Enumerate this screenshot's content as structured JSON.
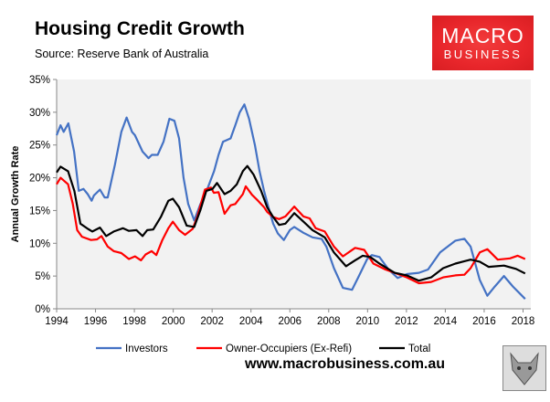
{
  "chart_data": {
    "type": "line",
    "title": "Housing Credit Growth",
    "subtitle": "Source: Reserve Bank of Australia",
    "xlabel": "",
    "ylabel": "Annual Growth Rate",
    "xlim": [
      1994,
      2018.4
    ],
    "ylim": [
      0,
      35
    ],
    "x_ticks": [
      "1994",
      "1996",
      "1998",
      "2000",
      "2002",
      "2004",
      "2006",
      "2008",
      "2010",
      "2012",
      "2014",
      "2016",
      "2018"
    ],
    "y_ticks": [
      "0%",
      "5%",
      "10%",
      "15%",
      "20%",
      "25%",
      "30%",
      "35%"
    ],
    "grid": false,
    "legend": "bottom",
    "series": [
      {
        "name": "Investors",
        "color": "#4472c4",
        "points": [
          [
            1994.0,
            26.5
          ],
          [
            1994.2,
            28
          ],
          [
            1994.36,
            27
          ],
          [
            1994.6,
            28.3
          ],
          [
            1994.9,
            24
          ],
          [
            1995.14,
            18
          ],
          [
            1995.38,
            18.3
          ],
          [
            1995.6,
            17.5
          ],
          [
            1995.8,
            16.5
          ],
          [
            1995.92,
            17.3
          ],
          [
            1996.23,
            18.2
          ],
          [
            1996.47,
            17
          ],
          [
            1996.63,
            17
          ],
          [
            1997.0,
            22
          ],
          [
            1997.33,
            27
          ],
          [
            1997.6,
            29.2
          ],
          [
            1997.88,
            27
          ],
          [
            1998.03,
            26.5
          ],
          [
            1998.42,
            24
          ],
          [
            1998.73,
            23
          ],
          [
            1998.9,
            23.5
          ],
          [
            1999.2,
            23.5
          ],
          [
            1999.5,
            25.5
          ],
          [
            1999.8,
            29
          ],
          [
            2000.06,
            28.7
          ],
          [
            2000.3,
            26
          ],
          [
            2000.53,
            20
          ],
          [
            2000.77,
            16
          ],
          [
            2001.08,
            13.5
          ],
          [
            2001.4,
            16
          ],
          [
            2001.78,
            18.5
          ],
          [
            2002.1,
            21
          ],
          [
            2002.33,
            23.5
          ],
          [
            2002.56,
            25.5
          ],
          [
            2002.95,
            26
          ],
          [
            2003.19,
            28
          ],
          [
            2003.42,
            30
          ],
          [
            2003.66,
            31.2
          ],
          [
            2003.9,
            29
          ],
          [
            2004.2,
            25
          ],
          [
            2004.44,
            21
          ],
          [
            2004.67,
            18
          ],
          [
            2004.9,
            15.5
          ],
          [
            2005.14,
            13
          ],
          [
            2005.38,
            11.5
          ],
          [
            2005.69,
            10.5
          ],
          [
            2006.0,
            12
          ],
          [
            2006.23,
            12.5
          ],
          [
            2006.7,
            11.6
          ],
          [
            2007.17,
            10.9
          ],
          [
            2007.64,
            10.65
          ],
          [
            2007.88,
            9.5
          ],
          [
            2008.27,
            6.2
          ],
          [
            2008.73,
            3.2
          ],
          [
            2009.2,
            2.9
          ],
          [
            2009.52,
            4.8
          ],
          [
            2009.98,
            7.6
          ],
          [
            2010.22,
            8.2
          ],
          [
            2010.61,
            7.9
          ],
          [
            2011.08,
            6
          ],
          [
            2011.55,
            4.7
          ],
          [
            2012.02,
            5.3
          ],
          [
            2012.64,
            5.5
          ],
          [
            2013.11,
            6
          ],
          [
            2013.73,
            8.6
          ],
          [
            2014.52,
            10.4
          ],
          [
            2014.98,
            10.7
          ],
          [
            2015.3,
            9.5
          ],
          [
            2015.77,
            4.4
          ],
          [
            2016.16,
            2
          ],
          [
            2016.55,
            3.4
          ],
          [
            2017.02,
            5
          ],
          [
            2017.48,
            3.4
          ],
          [
            2018.11,
            1.5
          ]
        ]
      },
      {
        "name": "Owner-Occupiers (Ex-Refi)",
        "color": "#ff0000",
        "points": [
          [
            1994.0,
            19
          ],
          [
            1994.2,
            20
          ],
          [
            1994.59,
            19
          ],
          [
            1994.83,
            16
          ],
          [
            1995.06,
            12
          ],
          [
            1995.3,
            11
          ],
          [
            1995.77,
            10.5
          ],
          [
            1996.08,
            10.6
          ],
          [
            1996.31,
            11.1
          ],
          [
            1996.63,
            9.5
          ],
          [
            1996.94,
            8.8
          ],
          [
            1997.33,
            8.5
          ],
          [
            1997.72,
            7.6
          ],
          [
            1998.03,
            8
          ],
          [
            1998.34,
            7.4
          ],
          [
            1998.58,
            8.3
          ],
          [
            1998.89,
            8.8
          ],
          [
            1999.13,
            8.2
          ],
          [
            1999.44,
            10.5
          ],
          [
            1999.75,
            12.3
          ],
          [
            1999.98,
            13.3
          ],
          [
            2000.3,
            12
          ],
          [
            2000.61,
            11.3
          ],
          [
            2001.0,
            12.2
          ],
          [
            2001.23,
            14
          ],
          [
            2001.63,
            18.2
          ],
          [
            2001.94,
            18.5
          ],
          [
            2002.09,
            17.7
          ],
          [
            2002.33,
            17.8
          ],
          [
            2002.64,
            14.5
          ],
          [
            2002.95,
            15.8
          ],
          [
            2003.19,
            16
          ],
          [
            2003.58,
            17.5
          ],
          [
            2003.73,
            18.7
          ],
          [
            2004.05,
            17.4
          ],
          [
            2004.36,
            16.5
          ],
          [
            2004.67,
            15.5
          ],
          [
            2004.83,
            14.8
          ],
          [
            2005.14,
            14
          ],
          [
            2005.45,
            13.7
          ],
          [
            2005.77,
            14.1
          ],
          [
            2006.23,
            15.6
          ],
          [
            2006.7,
            14.1
          ],
          [
            2007.02,
            13.8
          ],
          [
            2007.33,
            12.3
          ],
          [
            2007.8,
            11.8
          ],
          [
            2008.27,
            9.5
          ],
          [
            2008.73,
            8
          ],
          [
            2009.36,
            9.3
          ],
          [
            2009.83,
            9
          ],
          [
            2010.3,
            6.9
          ],
          [
            2010.92,
            6
          ],
          [
            2011.39,
            5.5
          ],
          [
            2012.02,
            4.8
          ],
          [
            2012.64,
            3.9
          ],
          [
            2013.27,
            4.1
          ],
          [
            2013.89,
            4.8
          ],
          [
            2014.52,
            5.1
          ],
          [
            2014.98,
            5.2
          ],
          [
            2015.3,
            6.2
          ],
          [
            2015.77,
            8.6
          ],
          [
            2016.16,
            9.1
          ],
          [
            2016.7,
            7.5
          ],
          [
            2017.33,
            7.7
          ],
          [
            2017.72,
            8.1
          ],
          [
            2018.11,
            7.6
          ]
        ]
      },
      {
        "name": "Total",
        "color": "#000000",
        "points": [
          [
            1994.0,
            20.8
          ],
          [
            1994.2,
            21.7
          ],
          [
            1994.59,
            21
          ],
          [
            1994.91,
            18
          ],
          [
            1995.22,
            13
          ],
          [
            1995.61,
            12.2
          ],
          [
            1995.84,
            11.8
          ],
          [
            1996.23,
            12.4
          ],
          [
            1996.55,
            11.1
          ],
          [
            1996.94,
            11.8
          ],
          [
            1997.41,
            12.3
          ],
          [
            1997.72,
            11.9
          ],
          [
            1998.11,
            12
          ],
          [
            1998.42,
            11.1
          ],
          [
            1998.66,
            12
          ],
          [
            1998.97,
            12.1
          ],
          [
            1999.36,
            14
          ],
          [
            1999.75,
            16.5
          ],
          [
            1999.98,
            16.8
          ],
          [
            2000.3,
            15.5
          ],
          [
            2000.69,
            12.7
          ],
          [
            2001.08,
            12.5
          ],
          [
            2001.39,
            15
          ],
          [
            2001.7,
            18
          ],
          [
            2002.02,
            18.3
          ],
          [
            2002.25,
            19.2
          ],
          [
            2002.64,
            17.5
          ],
          [
            2002.95,
            18
          ],
          [
            2003.27,
            19
          ],
          [
            2003.58,
            21
          ],
          [
            2003.81,
            21.8
          ],
          [
            2004.13,
            20.5
          ],
          [
            2004.52,
            18
          ],
          [
            2004.83,
            15.5
          ],
          [
            2005.14,
            14
          ],
          [
            2005.45,
            12.8
          ],
          [
            2005.77,
            13
          ],
          [
            2006.23,
            14.6
          ],
          [
            2006.7,
            13.3
          ],
          [
            2007.17,
            12
          ],
          [
            2007.8,
            10.9
          ],
          [
            2008.27,
            8.6
          ],
          [
            2008.89,
            6.5
          ],
          [
            2009.36,
            7.4
          ],
          [
            2009.75,
            8.1
          ],
          [
            2010.14,
            7.9
          ],
          [
            2010.61,
            6.9
          ],
          [
            2011.39,
            5.5
          ],
          [
            2012.02,
            5.1
          ],
          [
            2012.64,
            4.3
          ],
          [
            2013.27,
            4.8
          ],
          [
            2013.89,
            6.2
          ],
          [
            2014.52,
            6.9
          ],
          [
            2015.3,
            7.5
          ],
          [
            2015.77,
            7.2
          ],
          [
            2016.23,
            6.4
          ],
          [
            2017.02,
            6.6
          ],
          [
            2017.64,
            6.1
          ],
          [
            2018.11,
            5.4
          ]
        ]
      }
    ]
  },
  "logo": {
    "line1": "MACRO",
    "line2": "BUSINESS"
  },
  "footer": {
    "url": "www.macrobusiness.com.au"
  },
  "colors": {
    "plot_background": "#f2f2f2",
    "logo_red": "#e8262b"
  }
}
